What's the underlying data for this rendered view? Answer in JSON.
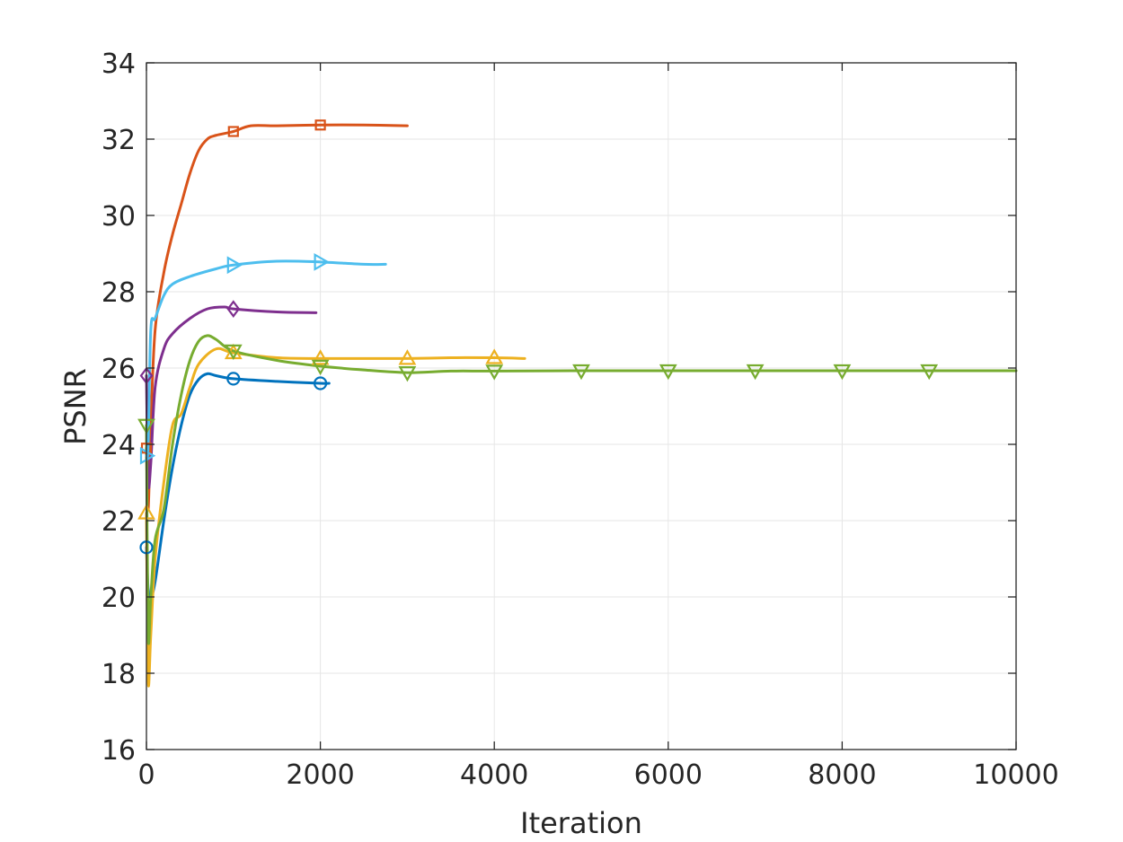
{
  "chart_data": {
    "type": "line",
    "xlabel": "Iteration",
    "ylabel": "PSNR",
    "xlim": [
      0,
      10000
    ],
    "ylim": [
      16,
      34
    ],
    "xticks": [
      0,
      2000,
      4000,
      6000,
      8000,
      10000
    ],
    "yticks": [
      16,
      18,
      20,
      22,
      24,
      26,
      28,
      30,
      32,
      34
    ],
    "grid": true,
    "legend": "none",
    "series": [
      {
        "color": "#0072BD",
        "marker": "circle",
        "points": [
          [
            0,
            21.3
          ],
          [
            20,
            20.2
          ],
          [
            50,
            20.0
          ],
          [
            100,
            20.4
          ],
          [
            200,
            22.0
          ],
          [
            300,
            23.4
          ],
          [
            400,
            24.5
          ],
          [
            500,
            25.3
          ],
          [
            600,
            25.7
          ],
          [
            700,
            25.85
          ],
          [
            800,
            25.8
          ],
          [
            1000,
            25.72
          ],
          [
            1500,
            25.65
          ],
          [
            2000,
            25.6
          ],
          [
            2100,
            25.6
          ]
        ],
        "marker_points": [
          [
            0,
            21.3
          ],
          [
            1000,
            25.72
          ],
          [
            2000,
            25.6
          ]
        ]
      },
      {
        "color": "#D95319",
        "marker": "square",
        "points": [
          [
            0,
            23.9
          ],
          [
            20,
            22.3
          ],
          [
            50,
            24.5
          ],
          [
            100,
            27.0
          ],
          [
            200,
            28.5
          ],
          [
            300,
            29.5
          ],
          [
            400,
            30.3
          ],
          [
            500,
            31.1
          ],
          [
            600,
            31.7
          ],
          [
            700,
            32.0
          ],
          [
            800,
            32.1
          ],
          [
            1000,
            32.2
          ],
          [
            1200,
            32.35
          ],
          [
            1500,
            32.35
          ],
          [
            2000,
            32.37
          ],
          [
            2500,
            32.37
          ],
          [
            3000,
            32.35
          ]
        ],
        "marker_points": [
          [
            0,
            23.9
          ],
          [
            1000,
            32.2
          ],
          [
            2000,
            32.37
          ]
        ]
      },
      {
        "color": "#EDB120",
        "marker": "triangle-up",
        "points": [
          [
            0,
            22.2
          ],
          [
            20,
            17.8
          ],
          [
            50,
            19.0
          ],
          [
            100,
            21.0
          ],
          [
            200,
            23.0
          ],
          [
            300,
            24.5
          ],
          [
            400,
            24.8
          ],
          [
            500,
            25.5
          ],
          [
            600,
            26.1
          ],
          [
            800,
            26.5
          ],
          [
            1000,
            26.4
          ],
          [
            1500,
            26.27
          ],
          [
            2000,
            26.25
          ],
          [
            2500,
            26.25
          ],
          [
            3000,
            26.25
          ],
          [
            3500,
            26.27
          ],
          [
            4000,
            26.27
          ],
          [
            4350,
            26.25
          ]
        ],
        "marker_points": [
          [
            0,
            22.2
          ],
          [
            1000,
            26.4
          ],
          [
            2000,
            26.25
          ],
          [
            3000,
            26.25
          ],
          [
            4000,
            26.27
          ]
        ]
      },
      {
        "color": "#7E2F8E",
        "marker": "diamond",
        "points": [
          [
            0,
            25.8
          ],
          [
            20,
            23.0
          ],
          [
            50,
            23.5
          ],
          [
            100,
            25.5
          ],
          [
            200,
            26.5
          ],
          [
            300,
            26.9
          ],
          [
            500,
            27.3
          ],
          [
            700,
            27.55
          ],
          [
            900,
            27.6
          ],
          [
            1000,
            27.55
          ],
          [
            1500,
            27.47
          ],
          [
            1950,
            27.45
          ]
        ],
        "marker_points": [
          [
            0,
            25.8
          ],
          [
            1000,
            27.55
          ]
        ]
      },
      {
        "color": "#77AC30",
        "marker": "triangle-down",
        "points": [
          [
            0,
            24.5
          ],
          [
            20,
            19.0
          ],
          [
            50,
            20.0
          ],
          [
            100,
            21.5
          ],
          [
            200,
            22.3
          ],
          [
            300,
            24.0
          ],
          [
            400,
            25.3
          ],
          [
            500,
            26.2
          ],
          [
            600,
            26.7
          ],
          [
            700,
            26.85
          ],
          [
            800,
            26.75
          ],
          [
            1000,
            26.45
          ],
          [
            1500,
            26.2
          ],
          [
            2000,
            26.05
          ],
          [
            2500,
            25.95
          ],
          [
            3000,
            25.88
          ],
          [
            3500,
            25.92
          ],
          [
            4000,
            25.92
          ],
          [
            5000,
            25.93
          ],
          [
            6000,
            25.93
          ],
          [
            7000,
            25.93
          ],
          [
            8000,
            25.93
          ],
          [
            9000,
            25.93
          ],
          [
            10000,
            25.93
          ]
        ],
        "marker_points": [
          [
            0,
            24.5
          ],
          [
            1000,
            26.45
          ],
          [
            2000,
            26.05
          ],
          [
            3000,
            25.88
          ],
          [
            4000,
            25.92
          ],
          [
            5000,
            25.93
          ],
          [
            6000,
            25.93
          ],
          [
            7000,
            25.93
          ],
          [
            8000,
            25.93
          ],
          [
            9000,
            25.93
          ]
        ]
      },
      {
        "color": "#4DBEEE",
        "marker": "triangle-right",
        "points": [
          [
            0,
            23.7
          ],
          [
            20,
            24.0
          ],
          [
            50,
            27.0
          ],
          [
            100,
            27.3
          ],
          [
            200,
            27.9
          ],
          [
            300,
            28.2
          ],
          [
            500,
            28.4
          ],
          [
            800,
            28.6
          ],
          [
            1000,
            28.7
          ],
          [
            1500,
            28.8
          ],
          [
            2000,
            28.78
          ],
          [
            2500,
            28.72
          ],
          [
            2750,
            28.72
          ]
        ],
        "marker_points": [
          [
            0,
            23.7
          ],
          [
            1000,
            28.7
          ],
          [
            2000,
            28.78
          ]
        ]
      }
    ]
  }
}
